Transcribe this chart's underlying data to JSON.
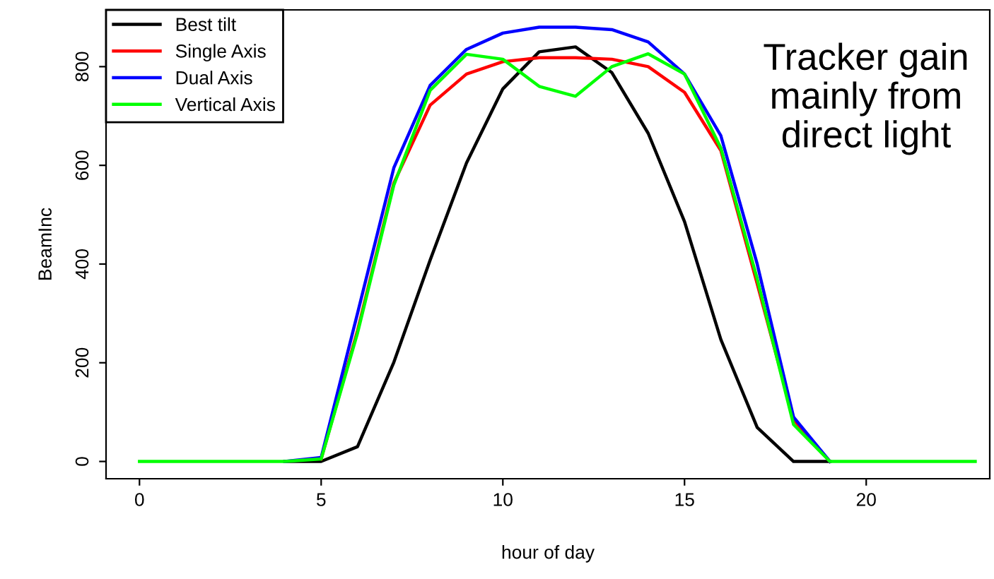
{
  "chart_data": {
    "type": "line",
    "xlabel": "hour of day",
    "ylabel": "BeamInc",
    "x": [
      0,
      1,
      2,
      3,
      4,
      5,
      6,
      7,
      8,
      9,
      10,
      11,
      12,
      13,
      14,
      15,
      16,
      17,
      18,
      19,
      20,
      21,
      22,
      23
    ],
    "series": [
      {
        "name": "Best tilt",
        "color": "#000000",
        "values": [
          null,
          null,
          null,
          null,
          0,
          0,
          30,
          201,
          408,
          605,
          755,
          830,
          840,
          788,
          665,
          486,
          247,
          69,
          0,
          0,
          null,
          null,
          null,
          null
        ]
      },
      {
        "name": "Single Axis",
        "color": "#ff0000",
        "values": [
          null,
          null,
          null,
          null,
          null,
          5,
          265,
          564,
          722,
          785,
          810,
          818,
          818,
          815,
          800,
          748,
          630,
          360,
          85,
          0,
          null,
          null,
          null,
          null
        ]
      },
      {
        "name": "Dual Axis",
        "color": "#0000ff",
        "values": [
          null,
          null,
          null,
          null,
          0,
          8,
          300,
          595,
          762,
          835,
          868,
          880,
          880,
          875,
          850,
          785,
          660,
          400,
          90,
          0,
          null,
          null,
          null,
          null
        ]
      },
      {
        "name": "Vertical Axis",
        "color": "#00ff00",
        "values": [
          0,
          0,
          0,
          0,
          0,
          5,
          260,
          560,
          752,
          825,
          815,
          760,
          740,
          800,
          826,
          785,
          635,
          370,
          75,
          0,
          0,
          0,
          0,
          0
        ]
      }
    ],
    "xlim": [
      -0.92,
      23.4
    ],
    "ylim": [
      -35,
      915
    ],
    "xticks": [
      0,
      5,
      10,
      15,
      20
    ],
    "yticks": [
      0,
      200,
      400,
      600,
      800
    ],
    "grid": false,
    "legend": "top left",
    "marker": "none",
    "line_style": "solid",
    "annotations": [
      "Tracker gain\nmainly from\ndirect light"
    ]
  }
}
